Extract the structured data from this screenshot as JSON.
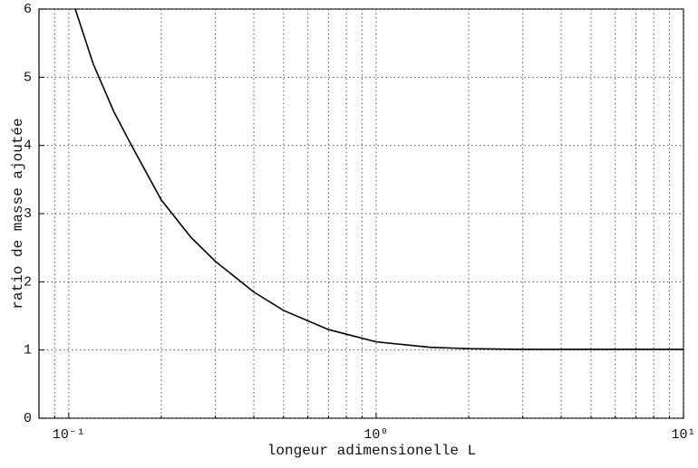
{
  "chart_data": {
    "type": "line",
    "xlabel": "longeur adimensionelle L",
    "ylabel": "ratio de masse ajoutée",
    "x": [
      0.105,
      0.12,
      0.14,
      0.16,
      0.2,
      0.25,
      0.3,
      0.4,
      0.5,
      0.7,
      1,
      1.5,
      2,
      3,
      5,
      10
    ],
    "values": [
      6,
      5.2,
      4.5,
      4.0,
      3.2,
      2.65,
      2.3,
      1.85,
      1.58,
      1.3,
      1.12,
      1.04,
      1.02,
      1.01,
      1.01,
      1.01
    ],
    "color": "#000000",
    "xscale": "log",
    "xlim": [
      0.08,
      10
    ],
    "xticks": [
      {
        "value": 0.1,
        "label": "10⁻¹"
      },
      {
        "value": 1,
        "label": "10⁰"
      },
      {
        "value": 10,
        "label": "10¹"
      }
    ],
    "xminor_ticks": [
      0.09,
      0.2,
      0.3,
      0.4,
      0.5,
      0.6,
      0.7,
      0.8,
      0.9,
      2,
      3,
      4,
      5,
      6,
      7,
      8,
      9
    ],
    "ylim": [
      0,
      6
    ],
    "yticks": [
      0,
      1,
      2,
      3,
      4,
      5,
      6
    ],
    "grid": true
  }
}
